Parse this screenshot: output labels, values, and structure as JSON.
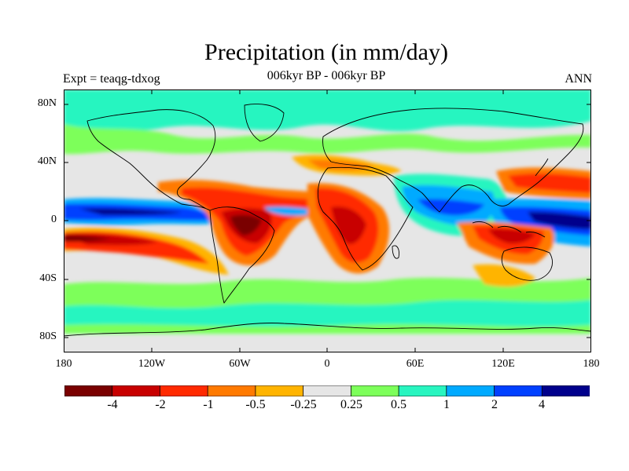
{
  "title": "Precipitation (in mm/day)",
  "subtitle": "006kyr BP - 006kyr BP",
  "left_string": "Expt = teaqg-tdxog",
  "right_string": "ANN",
  "latitude_labels": [
    "80N",
    "40N",
    "0",
    "40S",
    "80S"
  ],
  "longitude_labels": [
    "180",
    "120W",
    "60W",
    "0",
    "60E",
    "120E",
    "180"
  ],
  "colorbar": {
    "labels": [
      "-4",
      "-2",
      "-1",
      "-0.5",
      "-0.25",
      "0.25",
      "0.5",
      "1",
      "2",
      "4"
    ],
    "colors": [
      "#7a0000",
      "#c80000",
      "#ff2a00",
      "#ff7a00",
      "#ffb400",
      "#e6e6e6",
      "#7dff5a",
      "#28f5c0",
      "#00aaff",
      "#0040ff",
      "#00008c"
    ]
  },
  "colors": {
    "background": "#e6e6e6",
    "coastline": "#000000"
  }
}
